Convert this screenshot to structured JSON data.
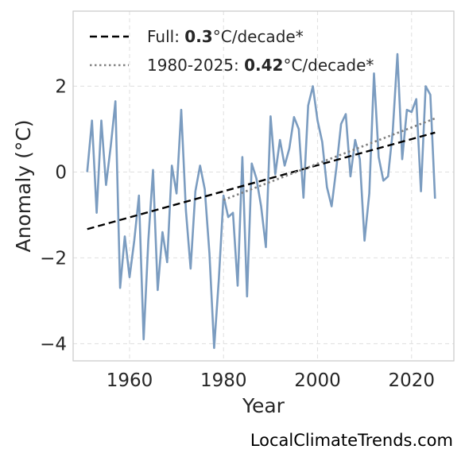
{
  "chart_data": {
    "type": "line",
    "title": "",
    "xlabel": "Year",
    "ylabel": "Anomaly (°C)",
    "xlim": [
      1948,
      2029
    ],
    "ylim": [
      -4.4,
      3.75
    ],
    "xticks": [
      1960,
      1980,
      2000,
      2020
    ],
    "yticks": [
      -4,
      -2,
      0,
      2
    ],
    "ytick_labels": [
      "−4",
      "−2",
      "0",
      "2"
    ],
    "grid": true,
    "legend_position": "top-left",
    "series": [
      {
        "color": "#7b9cc0",
        "x": [
          1951,
          1952,
          1953,
          1954,
          1955,
          1956,
          1957,
          1958,
          1959,
          1960,
          1961,
          1962,
          1963,
          1964,
          1965,
          1966,
          1967,
          1968,
          1969,
          1970,
          1971,
          1972,
          1973,
          1974,
          1975,
          1976,
          1977,
          1978,
          1979,
          1980,
          1981,
          1982,
          1983,
          1984,
          1985,
          1986,
          1987,
          1988,
          1989,
          1990,
          1991,
          1992,
          1993,
          1994,
          1995,
          1996,
          1997,
          1998,
          1999,
          2000,
          2001,
          2002,
          2003,
          2004,
          2005,
          2006,
          2007,
          2008,
          2009,
          2010,
          2011,
          2012,
          2013,
          2014,
          2015,
          2016,
          2017,
          2018,
          2019,
          2020,
          2021,
          2022,
          2023,
          2024,
          2025
        ],
        "y": [
          0.0,
          1.2,
          -0.95,
          1.2,
          -0.3,
          0.6,
          1.65,
          -2.7,
          -1.5,
          -2.45,
          -1.6,
          -0.55,
          -3.9,
          -1.6,
          0.05,
          -2.75,
          -1.4,
          -2.1,
          0.15,
          -0.5,
          1.45,
          -0.9,
          -2.25,
          -0.45,
          0.15,
          -0.4,
          -1.9,
          -4.1,
          -2.5,
          -0.55,
          -1.05,
          -0.95,
          -2.65,
          0.35,
          -2.9,
          0.2,
          -0.15,
          -0.8,
          -1.75,
          1.3,
          -0.05,
          0.75,
          0.15,
          0.55,
          1.28,
          1.0,
          -0.6,
          1.55,
          2.0,
          1.2,
          0.7,
          -0.35,
          -0.8,
          0.1,
          1.12,
          1.35,
          -0.1,
          0.75,
          0.3,
          -1.6,
          -0.5,
          2.3,
          0.35,
          -0.2,
          -0.1,
          0.95,
          2.75,
          0.3,
          1.45,
          1.4,
          1.7,
          -0.45,
          2.0,
          1.8,
          -0.62
        ]
      }
    ],
    "trends": [
      {
        "label_prefix": "Full: ",
        "label_value": "0.3",
        "label_suffix": "°C/decade*",
        "style": "dashed",
        "color": "#000000",
        "x": [
          1951,
          2025
        ],
        "y": [
          -1.33,
          0.92
        ]
      },
      {
        "label_prefix": "1980-2025: ",
        "label_value": "0.42",
        "label_suffix": "°C/decade*",
        "style": "dotted",
        "color": "#808080",
        "x": [
          1980,
          2025
        ],
        "y": [
          -0.65,
          1.25
        ]
      }
    ]
  },
  "watermark": "LocalClimateTrends.com"
}
